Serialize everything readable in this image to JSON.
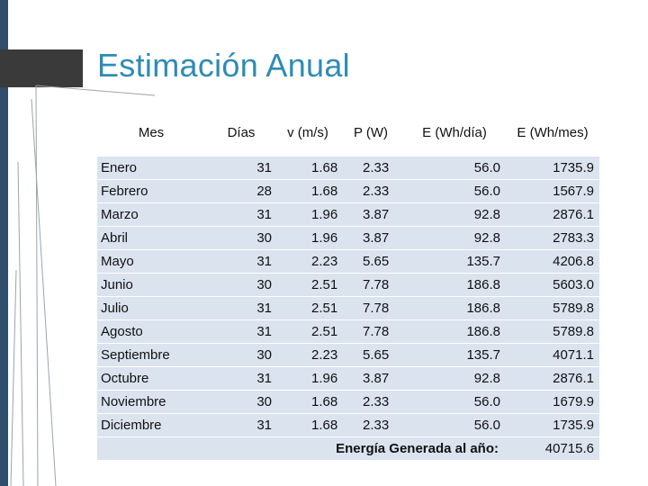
{
  "title": "Estimación Anual",
  "table": {
    "headers": [
      "Mes",
      "Días",
      "v (m/s)",
      "P (W)",
      "E (Wh/día)",
      "E (Wh/mes)"
    ],
    "rows": [
      {
        "mes": "Enero",
        "dias": "31",
        "v": "1.68",
        "p": "2.33",
        "e_dia": "56.0",
        "e_mes": "1735.9"
      },
      {
        "mes": "Febrero",
        "dias": "28",
        "v": "1.68",
        "p": "2.33",
        "e_dia": "56.0",
        "e_mes": "1567.9"
      },
      {
        "mes": "Marzo",
        "dias": "31",
        "v": "1.96",
        "p": "3.87",
        "e_dia": "92.8",
        "e_mes": "2876.1"
      },
      {
        "mes": "Abril",
        "dias": "30",
        "v": "1.96",
        "p": "3.87",
        "e_dia": "92.8",
        "e_mes": "2783.3"
      },
      {
        "mes": "Mayo",
        "dias": "31",
        "v": "2.23",
        "p": "5.65",
        "e_dia": "135.7",
        "e_mes": "4206.8"
      },
      {
        "mes": "Junio",
        "dias": "30",
        "v": "2.51",
        "p": "7.78",
        "e_dia": "186.8",
        "e_mes": "5603.0"
      },
      {
        "mes": "Julio",
        "dias": "31",
        "v": "2.51",
        "p": "7.78",
        "e_dia": "186.8",
        "e_mes": "5789.8"
      },
      {
        "mes": "Agosto",
        "dias": "31",
        "v": "2.51",
        "p": "7.78",
        "e_dia": "186.8",
        "e_mes": "5789.8"
      },
      {
        "mes": "Septiembre",
        "dias": "30",
        "v": "2.23",
        "p": "5.65",
        "e_dia": "135.7",
        "e_mes": "4071.1"
      },
      {
        "mes": "Octubre",
        "dias": "31",
        "v": "1.96",
        "p": "3.87",
        "e_dia": "92.8",
        "e_mes": "2876.1"
      },
      {
        "mes": "Noviembre",
        "dias": "30",
        "v": "1.68",
        "p": "2.33",
        "e_dia": "56.0",
        "e_mes": "1679.9"
      },
      {
        "mes": "Diciembre",
        "dias": "31",
        "v": "1.68",
        "p": "2.33",
        "e_dia": "56.0",
        "e_mes": "1735.9"
      }
    ],
    "total_label": "Energía Generada al año:",
    "total_value": "40715.6"
  },
  "colors": {
    "accent": "#2e8bb5",
    "sidebar": "#2e4e6b",
    "row_fill": "#dbe3ef"
  }
}
